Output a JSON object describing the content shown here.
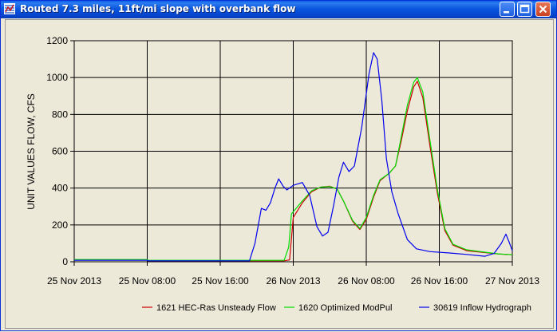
{
  "window": {
    "title": "Routed 7.3 miles, 11ft/mi slope with overbank flow",
    "controls": [
      "minimize-icon",
      "maximize-icon",
      "close-icon"
    ]
  },
  "chart_data": {
    "type": "line",
    "title": "",
    "xlabel": "",
    "ylabel": "UNIT VALUES FLOW, CFS",
    "x_unit": "hours from 25 Nov 2013 00:00",
    "xlim": [
      0,
      48
    ],
    "ylim": [
      0,
      1200
    ],
    "yticks": [
      0,
      200,
      400,
      600,
      800,
      1000,
      1200
    ],
    "xticks": [
      {
        "x": 0,
        "label": "25 Nov 2013"
      },
      {
        "x": 8,
        "label": "25 Nov 08:00"
      },
      {
        "x": 16,
        "label": "25 Nov 16:00"
      },
      {
        "x": 24,
        "label": "26 Nov 2013"
      },
      {
        "x": 32,
        "label": "26 Nov 08:00"
      },
      {
        "x": 40,
        "label": "26 Nov 16:00"
      },
      {
        "x": 48,
        "label": "27 Nov 2013"
      }
    ],
    "grid": true,
    "legend_position": "bottom",
    "series": [
      {
        "name": "1621 HEC-Ras Unsteady Flow",
        "color": "#CC0000",
        "points": [
          [
            0,
            10
          ],
          [
            8,
            10
          ],
          [
            8.1,
            5
          ],
          [
            23,
            5
          ],
          [
            23.6,
            10
          ],
          [
            24,
            240
          ],
          [
            25,
            320
          ],
          [
            26,
            380
          ],
          [
            27,
            405
          ],
          [
            28,
            410
          ],
          [
            28.8,
            395
          ],
          [
            29.5,
            330
          ],
          [
            30.5,
            220
          ],
          [
            31.3,
            175
          ],
          [
            32,
            230
          ],
          [
            32.8,
            350
          ],
          [
            33.5,
            440
          ],
          [
            34.5,
            480
          ],
          [
            35.2,
            520
          ],
          [
            35.8,
            650
          ],
          [
            36.5,
            820
          ],
          [
            37.2,
            950
          ],
          [
            37.6,
            980
          ],
          [
            38.2,
            890
          ],
          [
            39,
            620
          ],
          [
            39.8,
            370
          ],
          [
            40.6,
            170
          ],
          [
            41.5,
            90
          ],
          [
            43,
            60
          ],
          [
            45,
            50
          ],
          [
            46.5,
            42
          ],
          [
            48,
            38
          ]
        ]
      },
      {
        "name": "1620 Optimized ModPul",
        "color": "#00DD00",
        "points": [
          [
            0,
            12
          ],
          [
            8,
            12
          ],
          [
            8.1,
            8
          ],
          [
            23,
            8
          ],
          [
            23.5,
            80
          ],
          [
            23.8,
            260
          ],
          [
            25,
            330
          ],
          [
            26,
            385
          ],
          [
            27,
            405
          ],
          [
            28,
            408
          ],
          [
            28.8,
            395
          ],
          [
            29.5,
            330
          ],
          [
            30.5,
            225
          ],
          [
            31.3,
            180
          ],
          [
            32,
            240
          ],
          [
            32.8,
            360
          ],
          [
            33.5,
            445
          ],
          [
            34.5,
            480
          ],
          [
            35.2,
            520
          ],
          [
            35.8,
            670
          ],
          [
            36.5,
            850
          ],
          [
            37.2,
            975
          ],
          [
            37.6,
            1000
          ],
          [
            38.2,
            920
          ],
          [
            39,
            650
          ],
          [
            39.8,
            390
          ],
          [
            40.6,
            180
          ],
          [
            41.5,
            95
          ],
          [
            43,
            65
          ],
          [
            45,
            52
          ],
          [
            46.5,
            43
          ],
          [
            48,
            38
          ]
        ]
      },
      {
        "name": "30619 Inflow Hydrograph",
        "color": "#0000EE",
        "points": [
          [
            0,
            8
          ],
          [
            8,
            8
          ],
          [
            8.1,
            5
          ],
          [
            19.2,
            5
          ],
          [
            19.8,
            100
          ],
          [
            20.5,
            290
          ],
          [
            21,
            280
          ],
          [
            21.5,
            320
          ],
          [
            22,
            400
          ],
          [
            22.4,
            450
          ],
          [
            22.9,
            410
          ],
          [
            23.3,
            390
          ],
          [
            24,
            415
          ],
          [
            25,
            430
          ],
          [
            25.8,
            360
          ],
          [
            26.6,
            190
          ],
          [
            27.2,
            140
          ],
          [
            27.8,
            160
          ],
          [
            28.4,
            300
          ],
          [
            29,
            460
          ],
          [
            29.5,
            540
          ],
          [
            30.1,
            490
          ],
          [
            30.7,
            520
          ],
          [
            31.5,
            730
          ],
          [
            32.3,
            1020
          ],
          [
            32.8,
            1135
          ],
          [
            33.2,
            1100
          ],
          [
            33.7,
            880
          ],
          [
            34.2,
            560
          ],
          [
            34.8,
            380
          ],
          [
            35.5,
            260
          ],
          [
            36.5,
            120
          ],
          [
            37.5,
            70
          ],
          [
            39,
            55
          ],
          [
            41,
            48
          ],
          [
            43,
            40
          ],
          [
            45,
            30
          ],
          [
            46,
            45
          ],
          [
            46.8,
            100
          ],
          [
            47.3,
            150
          ],
          [
            47.7,
            100
          ],
          [
            48,
            60
          ]
        ]
      }
    ]
  }
}
